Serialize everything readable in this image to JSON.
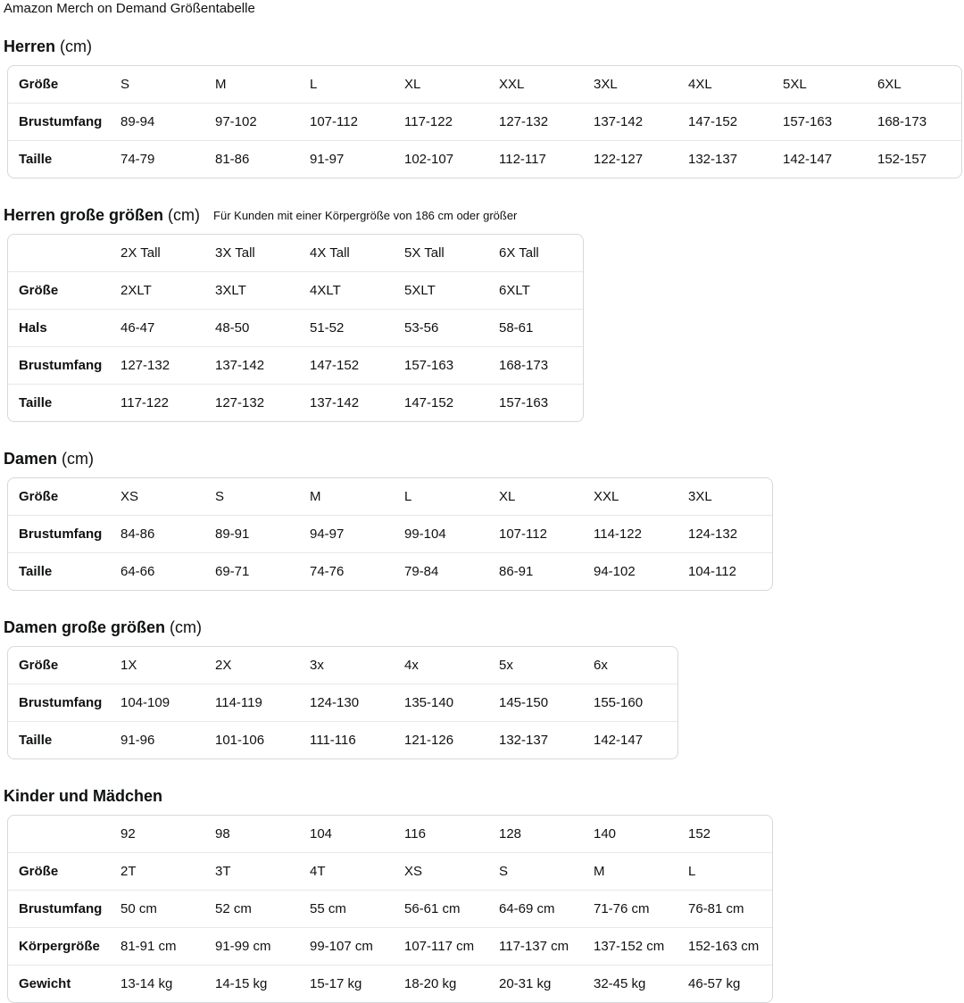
{
  "page_title": "Amazon Merch on Demand Größentabelle",
  "colors": {
    "text": "#0f1111",
    "table_border": "#d5d9d9",
    "row_divider": "#e7e7e7",
    "background": "#ffffff"
  },
  "sections": [
    {
      "id": "herren",
      "title": "Herren",
      "unit": "(cm)",
      "note": "",
      "rows": [
        [
          "Größe",
          "S",
          "M",
          "L",
          "XL",
          "XXL",
          "3XL",
          "4XL",
          "5XL",
          "6XL"
        ],
        [
          "Brustumfang",
          "89-94",
          "97-102",
          "107-112",
          "117-122",
          "127-132",
          "137-142",
          "147-152",
          "157-163",
          "168-173"
        ],
        [
          "Taille",
          "74-79",
          "81-86",
          "91-97",
          "102-107",
          "112-117",
          "122-127",
          "132-137",
          "142-147",
          "152-157"
        ]
      ]
    },
    {
      "id": "herren-grosse-groessen",
      "title": "Herren große größen",
      "unit": "(cm)",
      "note": "Für Kunden mit einer Körpergröße von 186 cm oder größer",
      "rows": [
        [
          "",
          "2X Tall",
          "3X Tall",
          "4X Tall",
          "5X Tall",
          "6X Tall"
        ],
        [
          "Größe",
          "2XLT",
          "3XLT",
          "4XLT",
          "5XLT",
          "6XLT"
        ],
        [
          "Hals",
          "46-47",
          "48-50",
          "51-52",
          "53-56",
          "58-61"
        ],
        [
          "Brustumfang",
          "127-132",
          "137-142",
          "147-152",
          "157-163",
          "168-173"
        ],
        [
          "Taille",
          "117-122",
          "127-132",
          "137-142",
          "147-152",
          "157-163"
        ]
      ]
    },
    {
      "id": "damen",
      "title": "Damen",
      "unit": "(cm)",
      "note": "",
      "rows": [
        [
          "Größe",
          "XS",
          "S",
          "M",
          "L",
          "XL",
          "XXL",
          "3XL"
        ],
        [
          "Brustumfang",
          "84-86",
          "89-91",
          "94-97",
          "99-104",
          "107-112",
          "114-122",
          "124-132"
        ],
        [
          "Taille",
          "64-66",
          "69-71",
          "74-76",
          "79-84",
          "86-91",
          "94-102",
          "104-112"
        ]
      ]
    },
    {
      "id": "damen-grosse-groessen",
      "title": "Damen große größen",
      "unit": "(cm)",
      "note": "",
      "rows": [
        [
          "Größe",
          "1X",
          "2X",
          "3x",
          "4x",
          "5x",
          "6x"
        ],
        [
          "Brustumfang",
          "104-109",
          "114-119",
          "124-130",
          "135-140",
          "145-150",
          "155-160"
        ],
        [
          "Taille",
          "91-96",
          "101-106",
          "111-116",
          "121-126",
          "132-137",
          "142-147"
        ]
      ]
    },
    {
      "id": "kinder-und-maedchen",
      "title": "Kinder und Mädchen",
      "unit": "",
      "note": "",
      "rows": [
        [
          "",
          "92",
          "98",
          "104",
          "116",
          "128",
          "140",
          "152"
        ],
        [
          "Größe",
          "2T",
          "3T",
          "4T",
          "XS",
          "S",
          "M",
          "L"
        ],
        [
          "Brustumfang",
          "50 cm",
          "52 cm",
          "55 cm",
          "56-61 cm",
          "64-69 cm",
          "71-76 cm",
          "76-81 cm"
        ],
        [
          "Körpergröße",
          "81-91 cm",
          "91-99 cm",
          "99-107 cm",
          "107-117 cm",
          "117-137 cm",
          "137-152 cm",
          "152-163 cm"
        ],
        [
          "Gewicht",
          "13-14 kg",
          "14-15 kg",
          "15-17 kg",
          "18-20 kg",
          "20-31 kg",
          "32-45 kg",
          "46-57 kg"
        ]
      ]
    }
  ]
}
